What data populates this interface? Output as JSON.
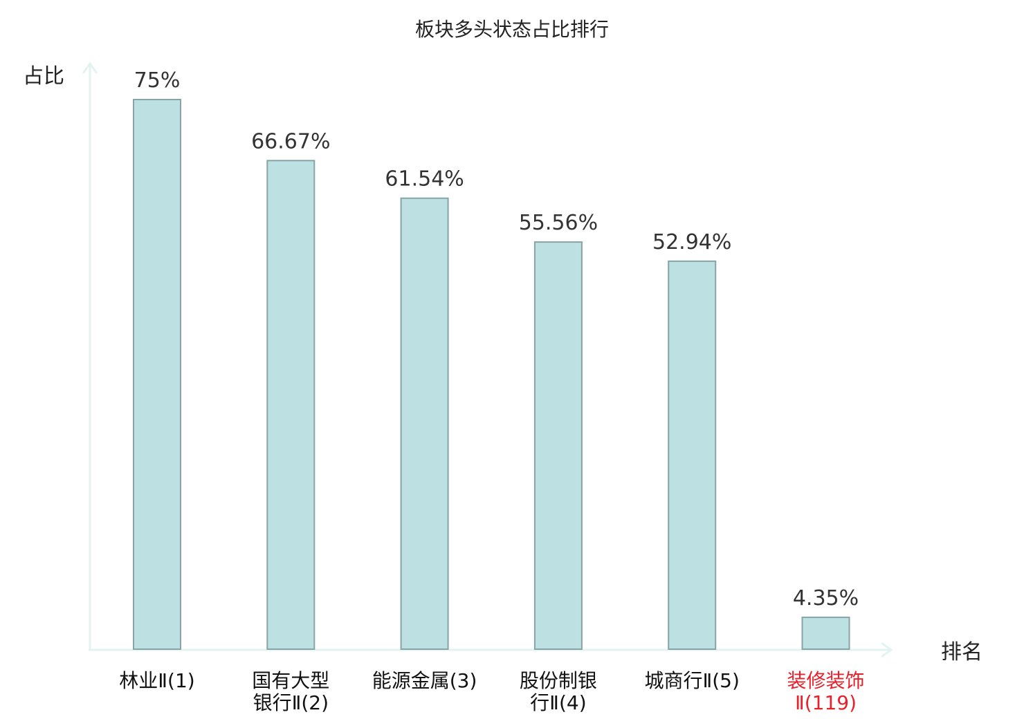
{
  "chart_data": {
    "type": "bar",
    "title": "板块多头状态占比排行",
    "ylabel": "占比",
    "xlabel": "排名",
    "categories": [
      [
        "林业Ⅱ(1)"
      ],
      [
        "国有大型",
        "银行Ⅱ(2)"
      ],
      [
        "能源金属(3)"
      ],
      [
        "股份制银",
        "行Ⅱ(4)"
      ],
      [
        "城商行Ⅱ(5)"
      ],
      [
        "装修装饰",
        "Ⅱ(119)"
      ]
    ],
    "values": [
      75,
      66.67,
      61.54,
      55.56,
      52.94,
      4.35
    ],
    "value_labels": [
      "75%",
      "66.67%",
      "61.54%",
      "55.56%",
      "52.94%",
      "4.35%"
    ],
    "highlight_index": 5,
    "ylim": [
      0,
      75
    ],
    "grid": false,
    "colors": {
      "bar_fill": "#bde0e3",
      "bar_stroke": "#86a3a6",
      "axis": "#e3f3f1",
      "text": "#333333",
      "highlight": "#e8202a"
    }
  }
}
